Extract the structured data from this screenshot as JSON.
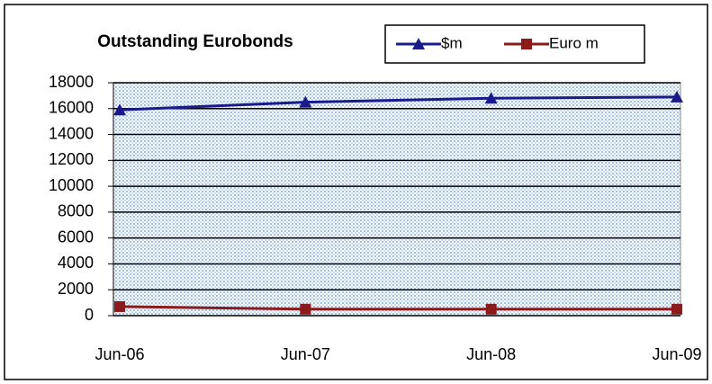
{
  "chart_data": {
    "type": "line",
    "title": "Outstanding Eurobonds",
    "categories": [
      "Jun-06",
      "Jun-07",
      "Jun-08",
      "Jun-09"
    ],
    "series": [
      {
        "name": "$m",
        "color": "#1a1a8c",
        "marker": "triangle",
        "values": [
          15900,
          16500,
          16800,
          16900
        ]
      },
      {
        "name": "Euro m",
        "color": "#8b1a1a",
        "marker": "square",
        "values": [
          700,
          500,
          500,
          500
        ]
      }
    ],
    "ylim": [
      0,
      18000
    ],
    "yticks": [
      0,
      2000,
      4000,
      6000,
      8000,
      10000,
      12000,
      14000,
      16000,
      18000
    ],
    "grid": true,
    "legend": "top-right"
  }
}
